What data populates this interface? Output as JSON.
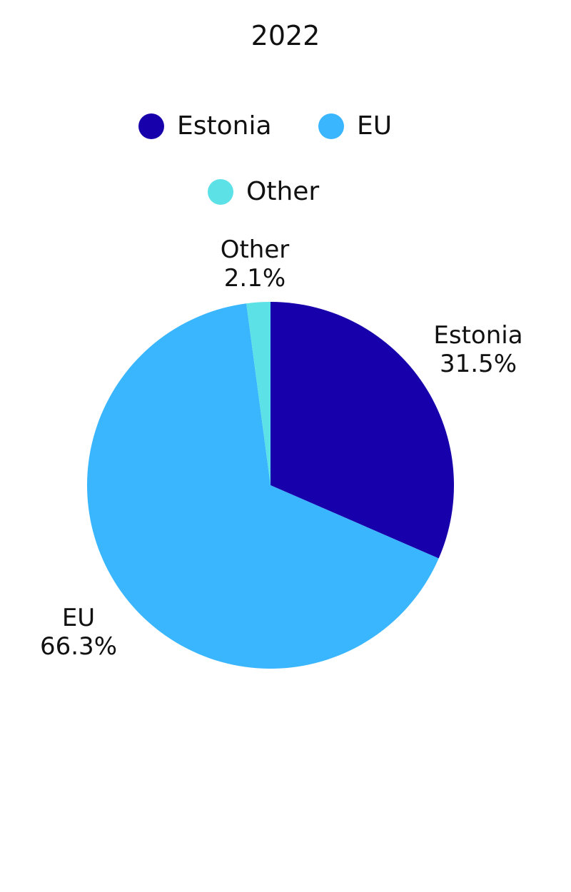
{
  "chart_data": {
    "type": "pie",
    "title": "2022",
    "categories": [
      "Estonia",
      "EU",
      "Other"
    ],
    "values": [
      31.5,
      66.3,
      2.1
    ],
    "value_labels": [
      "31.5%",
      "66.3%",
      "2.1%"
    ],
    "colors": [
      "#1700AC",
      "#3AB6FF",
      "#5CE1E6"
    ],
    "legend": "top",
    "start_angle": "12 o'clock",
    "direction": "clockwise"
  }
}
